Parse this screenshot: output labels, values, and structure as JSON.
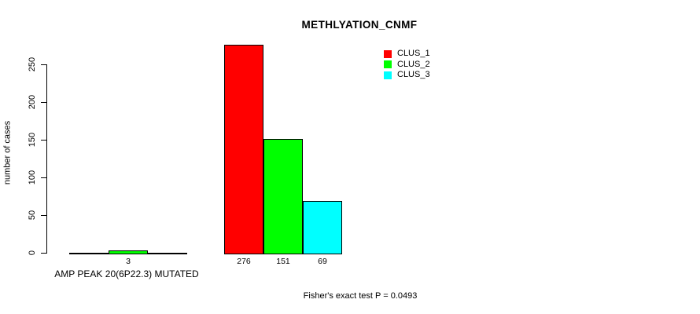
{
  "chart_data": {
    "type": "bar",
    "title": "METHLYATION_CNMF",
    "ylabel": "number of cases",
    "xlabel": "AMP PEAK 20(6P22.3) MUTATED",
    "annotation": "Fisher's exact test P = 0.0493",
    "ylim": [
      0,
      250
    ],
    "yticks": [
      0,
      50,
      100,
      150,
      200,
      250
    ],
    "grid": false,
    "legend_position": "top-right",
    "background_color": "#ffffff",
    "axis_color": "#000000",
    "categories": [
      "AMP PEAK 20(6P22.3) MUTATED",
      ""
    ],
    "series": [
      {
        "name": "CLUS_1",
        "color": "#ff0000",
        "values": [
          0,
          276
        ]
      },
      {
        "name": "CLUS_2",
        "color": "#00ff00",
        "values": [
          3,
          151
        ]
      },
      {
        "name": "CLUS_3",
        "color": "#00ffff",
        "values": [
          0,
          69
        ]
      }
    ],
    "bar_value_labels": [
      [
        "",
        "3",
        ""
      ],
      [
        "276",
        "151",
        "69"
      ]
    ]
  }
}
